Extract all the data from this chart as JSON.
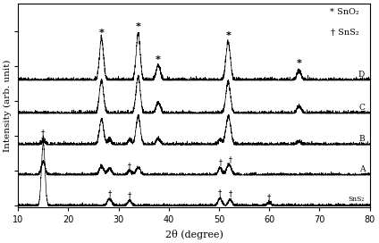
{
  "x_min": 10,
  "x_max": 80,
  "xlabel": "2θ (degree)",
  "ylabel": "Intensity (arb. unit)",
  "background_color": "#ffffff",
  "curve_labels": [
    "D",
    "C",
    "B",
    "A",
    "SnS₂"
  ],
  "offsets": [
    3.6,
    2.65,
    1.75,
    0.88,
    0.0
  ],
  "sno2_peaks": [
    26.6,
    33.9,
    37.9,
    51.8,
    65.9
  ],
  "sns2_peaks": [
    15.0,
    28.2,
    32.2,
    50.2,
    52.2,
    60.0
  ],
  "figsize": [
    4.24,
    2.72
  ],
  "dpi": 100
}
